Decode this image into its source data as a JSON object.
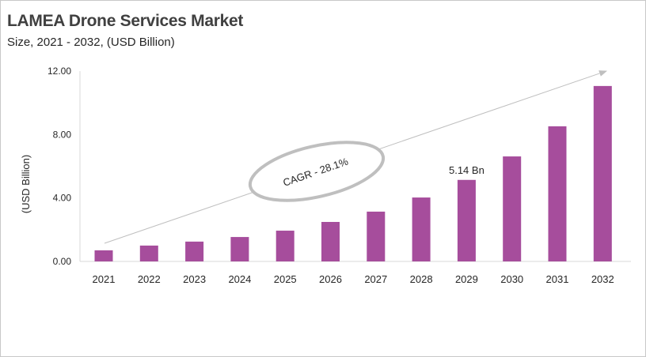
{
  "chart_data": {
    "type": "bar",
    "title": "LAMEA Drone Services Market",
    "subtitle": "Size, 2021 - 2032, (USD Billion)",
    "ylabel": "(USD Billion)",
    "xlabel": "",
    "categories": [
      "2021",
      "2022",
      "2023",
      "2024",
      "2025",
      "2026",
      "2027",
      "2028",
      "2029",
      "2030",
      "2031",
      "2032"
    ],
    "values": [
      0.7,
      1.0,
      1.25,
      1.54,
      1.94,
      2.49,
      3.14,
      4.03,
      5.14,
      6.62,
      8.52,
      11.06
    ],
    "ylim": [
      0,
      12
    ],
    "yticks": [
      "0.00",
      "4.00",
      "8.00",
      "12.00"
    ],
    "data_labels": [
      {
        "category": "2029",
        "text": "5.14 Bn"
      }
    ],
    "annotation": "CAGR - 28.1%",
    "bar_color": "#a64d9c",
    "grid": false,
    "legend": "none"
  }
}
